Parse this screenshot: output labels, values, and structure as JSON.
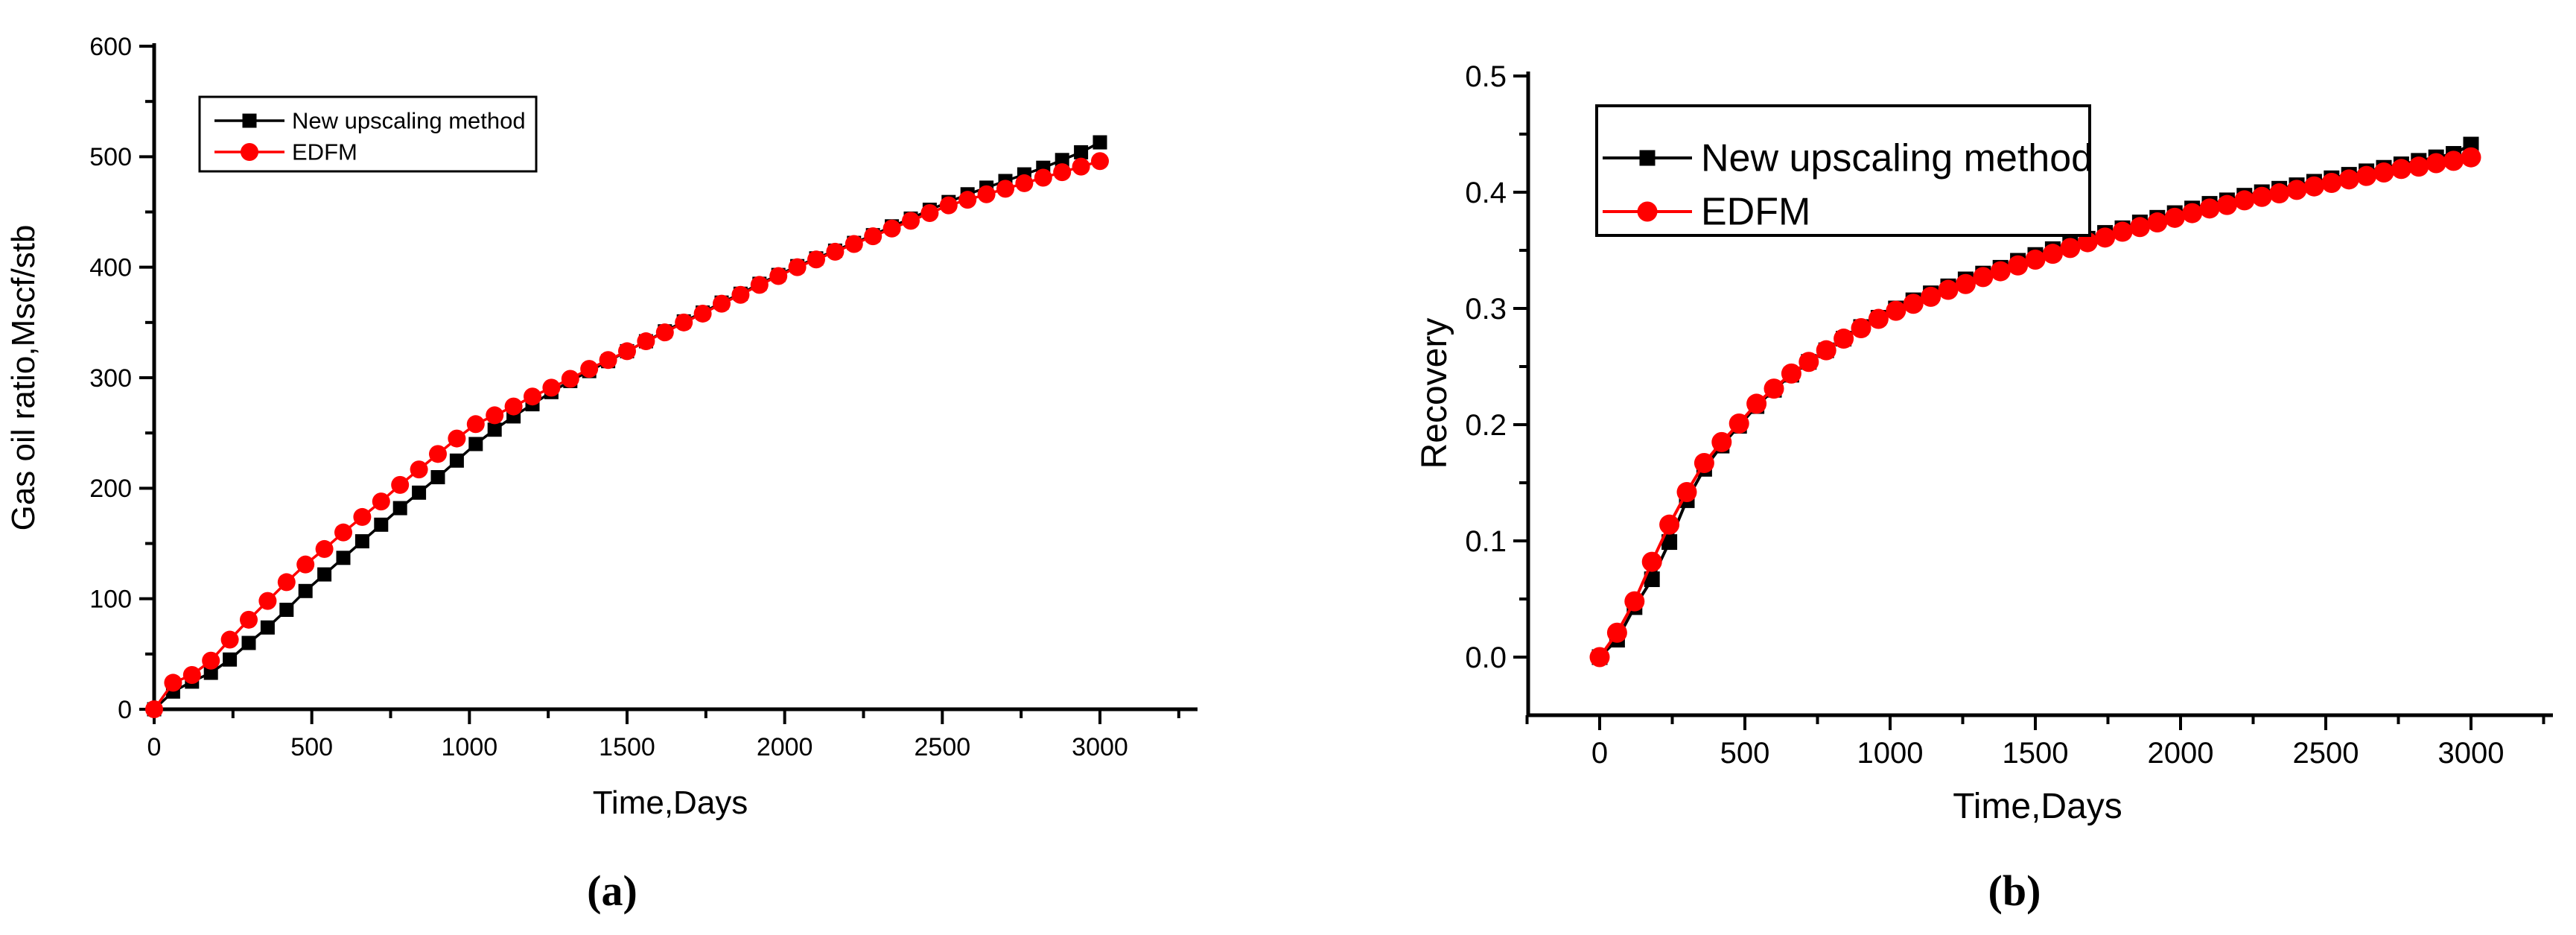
{
  "figure": {
    "background": "#ffffff",
    "series_colors": {
      "new_upscaling": "#000000",
      "edfm": "#ff0000"
    }
  },
  "chart_data": [
    {
      "id": "a",
      "type": "line",
      "panel_label": "(a)",
      "title": "",
      "xlabel": "Time,Days",
      "ylabel": "Gas oil ratio,Mscf/stb",
      "xlim": [
        0,
        3310
      ],
      "ylim": [
        0,
        600
      ],
      "grid": false,
      "legend_position": "top-left",
      "x_major_ticks": [
        0,
        500,
        1000,
        1500,
        2000,
        2500,
        3000
      ],
      "x_tick_labels": [
        "0",
        "500",
        "1000",
        "1500",
        "2000",
        "2500",
        "3000"
      ],
      "x_minor_ticks": [
        250,
        750,
        1250,
        1750,
        2250,
        2750,
        3250
      ],
      "y_major_ticks": [
        0,
        100,
        200,
        300,
        400,
        500,
        600
      ],
      "y_tick_labels": [
        "0",
        "100",
        "200",
        "300",
        "400",
        "500",
        "600"
      ],
      "y_minor_ticks": [
        50,
        150,
        250,
        350,
        450,
        550
      ],
      "x": [
        0,
        60,
        120,
        180,
        240,
        300,
        360,
        420,
        480,
        540,
        600,
        660,
        720,
        780,
        840,
        900,
        960,
        1020,
        1080,
        1140,
        1200,
        1260,
        1320,
        1380,
        1440,
        1500,
        1560,
        1620,
        1680,
        1740,
        1800,
        1860,
        1920,
        1980,
        2040,
        2100,
        2160,
        2220,
        2280,
        2340,
        2400,
        2460,
        2520,
        2580,
        2640,
        2700,
        2760,
        2820,
        2880,
        2940,
        3000
      ],
      "series": [
        {
          "name": "New upscaling method",
          "color": "#000000",
          "marker": "square",
          "values": [
            0,
            16,
            25,
            33,
            45,
            60,
            74,
            90,
            107,
            122,
            137,
            152,
            167,
            182,
            196,
            210,
            225,
            240,
            253,
            265,
            276,
            287,
            297,
            306,
            315,
            324,
            333,
            342,
            351,
            359,
            368,
            376,
            385,
            393,
            401,
            408,
            415,
            422,
            429,
            437,
            444,
            452,
            459,
            466,
            472,
            478,
            484,
            490,
            497,
            504,
            513
          ]
        },
        {
          "name": "EDFM",
          "color": "#ff0000",
          "marker": "circle",
          "values": [
            0,
            24,
            31,
            44,
            63,
            81,
            98,
            115,
            131,
            145,
            160,
            174,
            188,
            203,
            217,
            231,
            245,
            258,
            266,
            274,
            283,
            291,
            299,
            308,
            316,
            324,
            333,
            341,
            350,
            358,
            367,
            375,
            384,
            392,
            400,
            407,
            414,
            421,
            428,
            435,
            442,
            449,
            456,
            461,
            466,
            471,
            476,
            481,
            486,
            491,
            496
          ]
        }
      ]
    },
    {
      "id": "b",
      "type": "line",
      "panel_label": "(b)",
      "title": "",
      "xlabel": "Time,Days",
      "ylabel": "Recovery",
      "xlim": [
        -250,
        3280
      ],
      "ylim": [
        -0.05,
        0.5
      ],
      "grid": false,
      "legend_position": "top-left",
      "x_major_ticks": [
        0,
        500,
        1000,
        1500,
        2000,
        2500,
        3000
      ],
      "x_tick_labels": [
        "0",
        "500",
        "1000",
        "1500",
        "2000",
        "2500",
        "3000"
      ],
      "x_minor_ticks": [
        -250,
        250,
        750,
        1250,
        1750,
        2250,
        2750,
        3250
      ],
      "y_major_ticks": [
        0,
        0.1,
        0.2,
        0.3,
        0.4,
        0.5
      ],
      "y_tick_labels": [
        "0.0",
        "0.1",
        "0.2",
        "0.3",
        "0.4",
        "0.5"
      ],
      "y_minor_ticks": [
        0.05,
        0.15,
        0.25,
        0.35,
        0.45
      ],
      "x": [
        0,
        60,
        120,
        180,
        240,
        300,
        360,
        420,
        480,
        540,
        600,
        660,
        720,
        780,
        840,
        900,
        960,
        1020,
        1080,
        1140,
        1200,
        1260,
        1320,
        1380,
        1440,
        1500,
        1560,
        1620,
        1680,
        1740,
        1800,
        1860,
        1920,
        1980,
        2040,
        2100,
        2160,
        2220,
        2280,
        2340,
        2400,
        2460,
        2520,
        2580,
        2640,
        2700,
        2760,
        2820,
        2880,
        2940,
        3000
      ],
      "series": [
        {
          "name": "New upscaling method",
          "color": "#000000",
          "marker": "square",
          "values": [
            0.0,
            0.015,
            0.043,
            0.067,
            0.099,
            0.135,
            0.162,
            0.182,
            0.199,
            0.216,
            0.23,
            0.243,
            0.254,
            0.264,
            0.274,
            0.284,
            0.292,
            0.3,
            0.307,
            0.313,
            0.319,
            0.325,
            0.33,
            0.335,
            0.341,
            0.346,
            0.351,
            0.356,
            0.36,
            0.365,
            0.369,
            0.374,
            0.378,
            0.382,
            0.386,
            0.39,
            0.393,
            0.397,
            0.4,
            0.403,
            0.406,
            0.409,
            0.412,
            0.415,
            0.418,
            0.421,
            0.424,
            0.427,
            0.43,
            0.433,
            0.441
          ]
        },
        {
          "name": "EDFM",
          "color": "#ff0000",
          "marker": "circle",
          "values": [
            0.0,
            0.021,
            0.048,
            0.082,
            0.114,
            0.142,
            0.167,
            0.185,
            0.201,
            0.218,
            0.231,
            0.244,
            0.254,
            0.264,
            0.274,
            0.283,
            0.291,
            0.298,
            0.304,
            0.31,
            0.316,
            0.321,
            0.327,
            0.332,
            0.337,
            0.342,
            0.347,
            0.352,
            0.357,
            0.361,
            0.366,
            0.37,
            0.374,
            0.378,
            0.382,
            0.386,
            0.389,
            0.393,
            0.396,
            0.399,
            0.402,
            0.405,
            0.408,
            0.411,
            0.414,
            0.417,
            0.42,
            0.422,
            0.425,
            0.427,
            0.43
          ]
        }
      ]
    }
  ]
}
